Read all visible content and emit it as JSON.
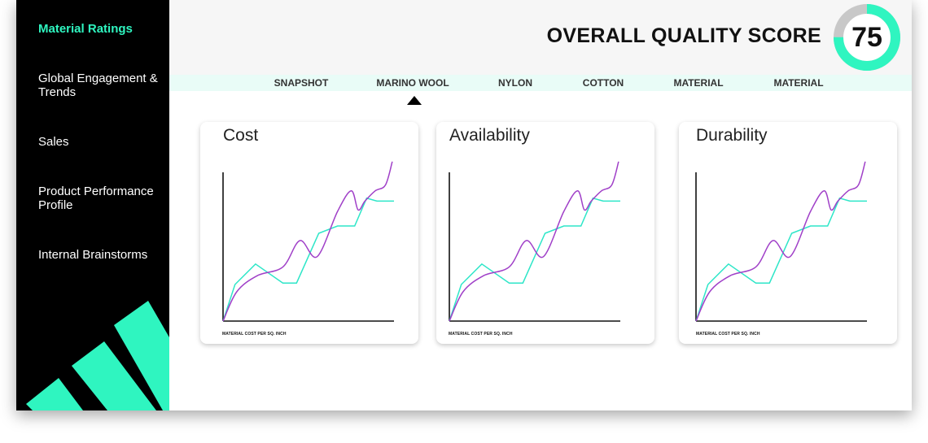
{
  "sidebar": {
    "items": [
      {
        "label": "Material Ratings",
        "active": true
      },
      {
        "label": "Global Engagement & Trends",
        "active": false
      },
      {
        "label": "Sales",
        "active": false
      },
      {
        "label": "Product Performance Profile",
        "active": false
      },
      {
        "label": "Internal Brainstorms",
        "active": false
      }
    ]
  },
  "header": {
    "score_title": "OVERALL QUALITY SCORE",
    "score_value": "75",
    "score_percent": 75
  },
  "tabs": [
    {
      "label": "SNAPSHOT"
    },
    {
      "label": "MARINO WOOL",
      "active": true
    },
    {
      "label": "NYLON"
    },
    {
      "label": "COTTON"
    },
    {
      "label": "MATERIAL"
    },
    {
      "label": "MATERIAL"
    }
  ],
  "colors": {
    "accent": "#2ff5c0",
    "teal_line": "#2ee6c8",
    "purple_line": "#a040c8",
    "sidebar_bg": "#000000",
    "ring_track": "#c8c8c8"
  },
  "cards": [
    {
      "title": "Cost",
      "xlabel": "MATERIAL COST PER SQ. INCH"
    },
    {
      "title": "Availability",
      "xlabel": "MATERIAL COST PER SQ. INCH"
    },
    {
      "title": "Durability",
      "xlabel": "MATERIAL COST PER SQ. INCH"
    }
  ],
  "chart_data": [
    {
      "type": "line",
      "title": "Cost",
      "xlabel": "MATERIAL COST PER SQ. INCH",
      "ylabel": "",
      "xlim": [
        0,
        10
      ],
      "ylim": [
        0,
        10
      ],
      "grid": false,
      "series": [
        {
          "x": [
            0,
            0.7,
            1.9,
            3.5,
            4.3,
            5.6,
            6.7,
            7.7,
            8.4,
            9.0,
            9.5,
            10.0
          ],
          "y": [
            0,
            2.5,
            3.9,
            2.6,
            2.6,
            6.0,
            6.5,
            6.5,
            8.4,
            8.2,
            8.2,
            8.2
          ]
        },
        {
          "x": [
            0,
            0.8,
            2.0,
            3.5,
            4.5,
            5.5,
            6.7,
            7.5,
            7.9,
            8.3,
            8.9,
            9.5,
            9.9
          ],
          "y": [
            0,
            2.0,
            3.1,
            3.7,
            5.5,
            4.4,
            7.5,
            8.9,
            7.6,
            8.2,
            8.9,
            9.3,
            10.9
          ]
        }
      ]
    },
    {
      "type": "line",
      "title": "Availability",
      "xlabel": "MATERIAL COST PER SQ. INCH",
      "ylabel": "",
      "xlim": [
        0,
        10
      ],
      "ylim": [
        0,
        10
      ],
      "grid": false,
      "series": [
        {
          "x": [
            0,
            0.7,
            1.9,
            3.5,
            4.3,
            5.6,
            6.7,
            7.7,
            8.4,
            9.0,
            9.5,
            10.0
          ],
          "y": [
            0,
            2.5,
            3.9,
            2.6,
            2.6,
            6.0,
            6.5,
            6.5,
            8.4,
            8.2,
            8.2,
            8.2
          ]
        },
        {
          "x": [
            0,
            0.8,
            2.0,
            3.5,
            4.5,
            5.5,
            6.7,
            7.5,
            7.9,
            8.3,
            8.9,
            9.5,
            9.9
          ],
          "y": [
            0,
            2.0,
            3.1,
            3.7,
            5.5,
            4.4,
            7.5,
            8.9,
            7.6,
            8.2,
            8.9,
            9.3,
            10.9
          ]
        }
      ]
    },
    {
      "type": "line",
      "title": "Durability",
      "xlabel": "MATERIAL COST PER SQ. INCH",
      "ylabel": "",
      "xlim": [
        0,
        10
      ],
      "ylim": [
        0,
        10
      ],
      "grid": false,
      "series": [
        {
          "x": [
            0,
            0.7,
            1.9,
            3.5,
            4.3,
            5.6,
            6.7,
            7.7,
            8.4,
            9.0,
            9.5,
            10.0
          ],
          "y": [
            0,
            2.5,
            3.9,
            2.6,
            2.6,
            6.0,
            6.5,
            6.5,
            8.4,
            8.2,
            8.2,
            8.2
          ]
        },
        {
          "x": [
            0,
            0.8,
            2.0,
            3.5,
            4.5,
            5.5,
            6.7,
            7.5,
            7.9,
            8.3,
            8.9,
            9.5,
            9.9
          ],
          "y": [
            0,
            2.0,
            3.1,
            3.7,
            5.5,
            4.4,
            7.5,
            8.9,
            7.6,
            8.2,
            8.9,
            9.3,
            10.9
          ]
        }
      ]
    }
  ]
}
